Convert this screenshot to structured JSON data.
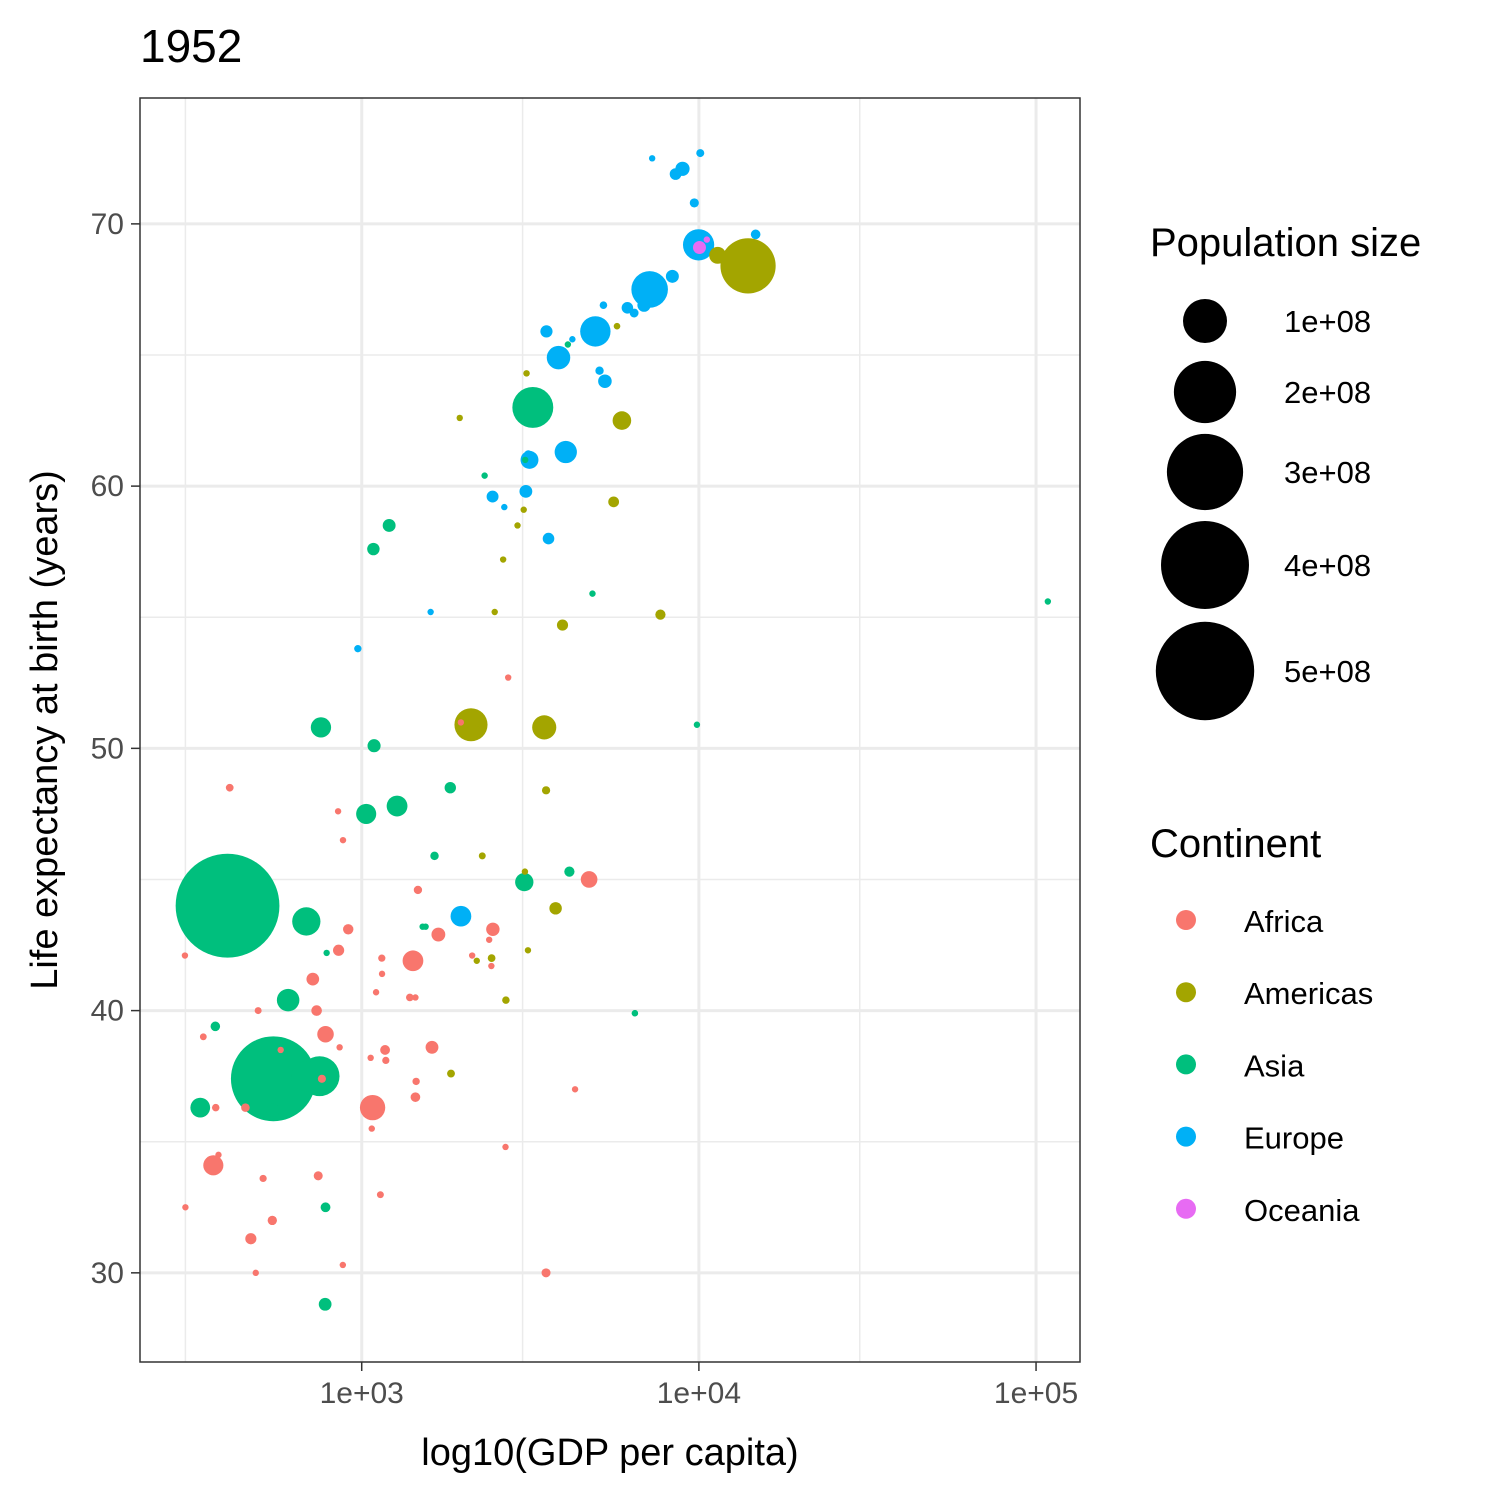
{
  "chart_data": {
    "type": "scatter",
    "title": "1952",
    "xlabel": "log10(GDP per capita)",
    "ylabel": "Life expectancy at birth (years)",
    "x_scale": "log10",
    "xlim": [
      220,
      135000
    ],
    "ylim": [
      26.6,
      74.8
    ],
    "x_ticks": [
      {
        "value": 1000,
        "label": "1e+03"
      },
      {
        "value": 10000,
        "label": "1e+04"
      },
      {
        "value": 100000,
        "label": "1e+05"
      }
    ],
    "y_ticks": [
      {
        "value": 30,
        "label": "30"
      },
      {
        "value": 40,
        "label": "40"
      },
      {
        "value": 50,
        "label": "50"
      },
      {
        "value": 60,
        "label": "60"
      },
      {
        "value": 70,
        "label": "70"
      }
    ],
    "grid": true,
    "legend_placement": "right",
    "size_legend": {
      "title": "Population size",
      "entries": [
        {
          "value": 100000000,
          "label": "1e+08"
        },
        {
          "value": 200000000,
          "label": "2e+08"
        },
        {
          "value": 300000000,
          "label": "3e+08"
        },
        {
          "value": 400000000,
          "label": "4e+08"
        },
        {
          "value": 500000000,
          "label": "5e+08"
        }
      ]
    },
    "color_legend": {
      "title": "Continent",
      "entries": [
        {
          "name": "Africa",
          "color": "#F8766D"
        },
        {
          "name": "Americas",
          "color": "#A3A500"
        },
        {
          "name": "Asia",
          "color": "#00BF7D"
        },
        {
          "name": "Europe",
          "color": "#00B0F6"
        },
        {
          "name": "Oceania",
          "color": "#E76BF3"
        }
      ]
    },
    "series": [
      {
        "name": "Africa",
        "color": "#F8766D",
        "points": [
          [
            2449,
            43.1,
            9.3
          ],
          [
            3521,
            30.0,
            4.2
          ],
          [
            1063,
            38.2,
            1.7
          ],
          [
            851,
            47.6,
            0.4
          ],
          [
            543,
            32.0,
            4.5
          ],
          [
            339,
            39.0,
            2.4
          ],
          [
            1173,
            38.5,
            5.0
          ],
          [
            1071,
            35.5,
            1.3
          ],
          [
            1179,
            38.1,
            2.7
          ],
          [
            1103,
            40.7,
            0.15
          ],
          [
            781,
            39.1,
            14.1
          ],
          [
            2126,
            42.1,
            0.85
          ],
          [
            1389,
            40.5,
            3.0
          ],
          [
            2670,
            34.8,
            0.06
          ],
          [
            1419,
            41.9,
            22.2
          ],
          [
            376,
            34.5,
            0.2
          ],
          [
            363,
            34.1,
            20.9
          ],
          [
            4293,
            37.0,
            0.42
          ],
          [
            485,
            30.0,
            0.28
          ],
          [
            912,
            43.1,
            5.6
          ],
          [
            510,
            33.6,
            2.7
          ],
          [
            300,
            32.5,
            0.58
          ],
          [
            854,
            42.3,
            6.5
          ],
          [
            299,
            42.1,
            0.75
          ],
          [
            575,
            38.5,
            0.86
          ],
          [
            2388,
            42.7,
            1.0
          ],
          [
            1443,
            36.7,
            4.8
          ],
          [
            369,
            36.3,
            2.9
          ],
          [
            452,
            36.3,
            3.8
          ],
          [
            743,
            33.7,
            4.2
          ],
          [
            1443,
            40.5,
            1.0
          ],
          [
            1968,
            50.99,
            0.52
          ],
          [
            1688,
            42.9,
            9.9
          ],
          [
            469,
            31.3,
            6.4
          ],
          [
            2424,
            41.7,
            0.49
          ],
          [
            762,
            37.4,
            3.4
          ],
          [
            1077,
            36.3,
            33.1
          ],
          [
            2719,
            52.7,
            0.26
          ],
          [
            493,
            40.0,
            2.5
          ],
          [
            880,
            46.5,
            0.06
          ],
          [
            1450,
            37.3,
            2.8
          ],
          [
            879,
            30.3,
            2.1
          ],
          [
            1136,
            32.98,
            2.5
          ],
          [
            4725,
            45.0,
            14.3
          ],
          [
            1616,
            38.6,
            8.5
          ],
          [
            1149,
            41.4,
            0.29
          ],
          [
            716,
            41.2,
            8.3
          ],
          [
            860,
            38.6,
            1.0
          ],
          [
            1468,
            44.6,
            3.6
          ],
          [
            735,
            40.0,
            5.8
          ],
          [
            1147,
            42.0,
            2.7
          ],
          [
            406,
            48.5,
            3.1
          ]
        ]
      },
      {
        "name": "Americas",
        "color": "#A3A500",
        "points": [
          [
            5911,
            62.5,
            17.9
          ],
          [
            2677,
            40.4,
            2.9
          ],
          [
            2109,
            50.9,
            56.6
          ],
          [
            11367,
            68.8,
            14.8
          ],
          [
            3940,
            54.7,
            6.4
          ],
          [
            2144,
            50.6,
            12.4
          ],
          [
            2627,
            57.2,
            0.93
          ],
          [
            5587,
            59.4,
            6.0
          ],
          [
            2278,
            45.9,
            2.5
          ],
          [
            3522,
            48.4,
            3.5
          ],
          [
            3048,
            45.3,
            2.04
          ],
          [
            2428,
            42.0,
            3.1
          ],
          [
            1840,
            37.6,
            3.2
          ],
          [
            2194,
            41.9,
            1.5
          ],
          [
            2898,
            58.5,
            1.4
          ],
          [
            3478,
            50.8,
            30.1
          ],
          [
            3112,
            42.3,
            1.2
          ],
          [
            2480,
            55.2,
            0.94
          ],
          [
            1953,
            62.6,
            1.6
          ],
          [
            3759,
            43.9,
            8.0
          ],
          [
            3082,
            64.3,
            2.2
          ],
          [
            3023,
            59.1,
            0.66
          ],
          [
            13990,
            68.4,
            157.6
          ],
          [
            5717,
            66.1,
            2.25
          ],
          [
            7690,
            55.1,
            5.4
          ]
        ]
      },
      {
        "name": "Asia",
        "color": "#00BF7D",
        "points": [
          [
            779,
            28.8,
            8.4
          ],
          [
            9867,
            50.9,
            0.12
          ],
          [
            684,
            37.5,
            46.9
          ],
          [
            368,
            39.4,
            4.7
          ],
          [
            400,
            44.0,
            556.3
          ],
          [
            3054,
            61.0,
            2.1
          ],
          [
            547,
            37.4,
            372.0
          ],
          [
            750,
            37.5,
            82.1
          ],
          [
            3035,
            44.9,
            17.3
          ],
          [
            4130,
            45.3,
            5.4
          ],
          [
            4087,
            65.4,
            1.6
          ],
          [
            3217,
            63.0,
            86.5
          ],
          [
            1547,
            43.2,
            0.6
          ],
          [
            1088,
            50.1,
            8.9
          ],
          [
            1031,
            47.5,
            20.9
          ],
          [
            108382,
            55.6,
            0.16
          ],
          [
            4835,
            55.9,
            1.4
          ],
          [
            1831,
            48.5,
            6.7
          ],
          [
            787,
            42.2,
            0.8
          ],
          [
            332,
            36.3,
            20.1
          ],
          [
            546,
            36.2,
            9.2
          ],
          [
            6460,
            39.9,
            0.51
          ],
          [
            685,
            43.4,
            41.3
          ],
          [
            1273,
            47.8,
            22.4
          ],
          [
            6460,
            39.9,
            0.51
          ],
          [
            2315,
            60.4,
            1.1
          ],
          [
            1083,
            57.6,
            7.98
          ],
          [
            1644,
            45.9,
            3.7
          ],
          [
            1206,
            58.5,
            8.6
          ],
          [
            757,
            50.8,
            21.3
          ],
          [
            605,
            40.4,
            26.2
          ],
          [
            1516,
            43.2,
            1.0
          ],
          [
            781,
            32.5,
            4.96
          ]
        ]
      },
      {
        "name": "Europe",
        "color": "#00B0F6",
        "points": [
          [
            1601,
            55.2,
            1.3
          ],
          [
            6137,
            66.8,
            6.9
          ],
          [
            8343,
            68.0,
            8.7
          ],
          [
            974,
            53.8,
            2.8
          ],
          [
            2444,
            59.6,
            7.3
          ],
          [
            3119,
            61.2,
            3.9
          ],
          [
            6876,
            66.9,
            9.1
          ],
          [
            9692,
            70.8,
            4.3
          ],
          [
            6425,
            66.6,
            4.1
          ],
          [
            7030,
            67.4,
            42.5
          ],
          [
            7144,
            67.5,
            69.1
          ],
          [
            3531,
            65.9,
            7.7
          ],
          [
            5264,
            64.0,
            9.5
          ],
          [
            7268,
            72.5,
            0.15
          ],
          [
            5211,
            66.9,
            2.95
          ],
          [
            4931,
            65.9,
            47.7
          ],
          [
            2648,
            59.2,
            0.41
          ],
          [
            8942,
            72.1,
            10.4
          ],
          [
            10095,
            72.7,
            3.3
          ],
          [
            4029,
            61.3,
            25.7
          ],
          [
            3068,
            59.8,
            8.5
          ],
          [
            3145,
            61.0,
            16.6
          ],
          [
            3581,
            58.0,
            6.9
          ],
          [
            5074,
            64.4,
            3.6
          ],
          [
            4215,
            65.6,
            1.5
          ],
          [
            3834,
            64.9,
            28.5
          ],
          [
            8528,
            71.9,
            7.1
          ],
          [
            14734,
            69.6,
            4.8
          ],
          [
            1969,
            43.6,
            22.2
          ],
          [
            9980,
            69.2,
            50.4
          ]
        ]
      },
      {
        "name": "Oceania",
        "color": "#E76BF3",
        "points": [
          [
            10040,
            69.1,
            8.7
          ],
          [
            10557,
            69.4,
            1.99
          ]
        ]
      }
    ],
    "point_format": "[gdp_per_capita, life_expectancy, population_millions]"
  }
}
